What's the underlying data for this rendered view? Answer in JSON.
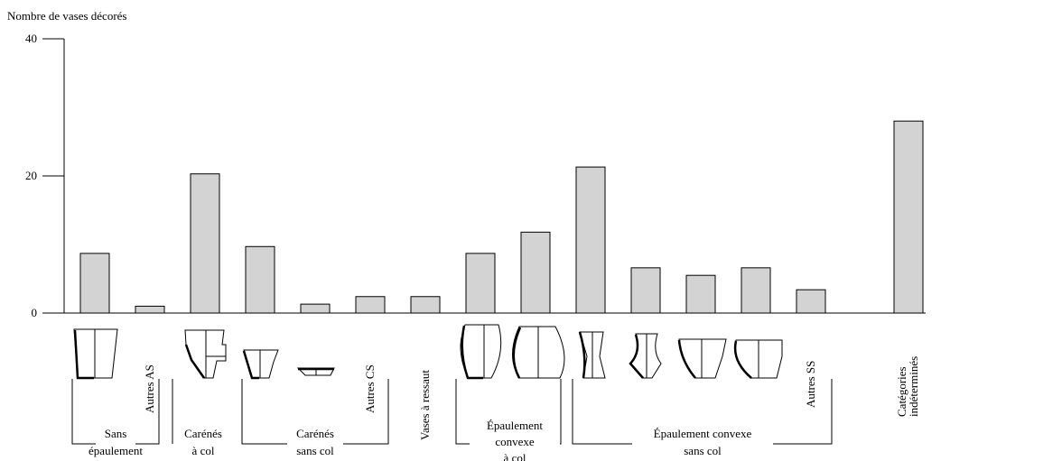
{
  "chart_data": {
    "type": "bar",
    "y_label": "Nombre de vases décorés",
    "categories": [
      null,
      "Autres AS",
      null,
      null,
      null,
      "Autres CS",
      "Vases à ressaut",
      null,
      null,
      null,
      null,
      null,
      null,
      "Autres SS",
      "Catégories indéterminés"
    ],
    "values": [
      8.7,
      1,
      20.3,
      9.7,
      1.3,
      2.4,
      2.4,
      8.7,
      11.8,
      21.3,
      6.6,
      5.5,
      6.6,
      3.4,
      28
    ],
    "color": "#d3d3d3",
    "ylim": [
      0,
      40
    ],
    "yticks": [
      0,
      20,
      40
    ],
    "grid": false,
    "groups": [
      [
        "Sans",
        "épaulement"
      ],
      [
        "Carénés",
        "à col"
      ],
      [
        "Carénés",
        "sans col"
      ],
      [
        "Épaulement",
        "convexe",
        "à col"
      ],
      [
        "Épaulement convexe",
        "sans col"
      ]
    ]
  }
}
